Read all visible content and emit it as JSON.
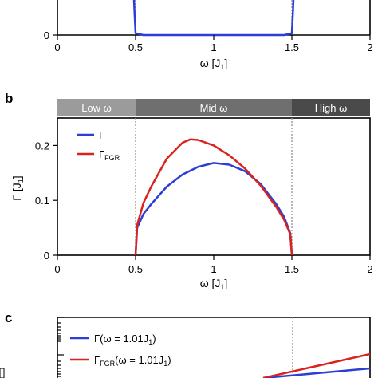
{
  "colors": {
    "blue": "#2b3fd6",
    "red": "#d8231f",
    "band_low": "#9b9b9b",
    "band_mid": "#6f6f6f",
    "band_high": "#4a4a4a"
  },
  "panel_a": {
    "xticks": [
      "0",
      "0.5",
      "1",
      "1.5",
      "2"
    ],
    "ytick_zero": "0",
    "xlabel_main": "ω [J",
    "xlabel_sub": "1",
    "xlabel_end": "]"
  },
  "panel_b": {
    "label": "b",
    "bands": {
      "low": "Low ω",
      "mid": "Mid ω",
      "high": "High ω"
    },
    "legend": {
      "g": "Γ",
      "gfgr_main": "Γ",
      "gfgr_sub": "FGR"
    },
    "ylabel_main": "Γ [J",
    "ylabel_sub": "1",
    "ylabel_end": "]",
    "xticks": [
      "0",
      "0.5",
      "1",
      "1.5",
      "2"
    ],
    "yticks": [
      "0",
      "0.1",
      "0.2"
    ],
    "xlabel_main": "ω [J",
    "xlabel_sub": "1",
    "xlabel_end": "]"
  },
  "panel_c": {
    "label": "c",
    "legend1_main": "Γ(ω = 1.01J",
    "legend1_sub": "1",
    "legend1_end": ")",
    "legend2_main": "Γ",
    "legend2_sub": "FGR",
    "legend2_rest": "(ω = 1.01J",
    "legend2_sub2": "1",
    "legend2_end": ")"
  },
  "chart_data": [
    {
      "type": "line",
      "panel": "a",
      "xlabel": "ω [J1]",
      "xlim": [
        0,
        2
      ],
      "series": [
        {
          "x": [
            0.49,
            0.495,
            0.5,
            0.55,
            1.0,
            1.45,
            1.5,
            1.505,
            1.51
          ],
          "y": [
            1.0,
            0.5,
            0.05,
            0.0,
            0.0,
            0.0,
            0.05,
            0.5,
            1.0
          ]
        }
      ]
    },
    {
      "type": "line",
      "panel": "b",
      "xlabel": "ω [J1]",
      "ylabel": "Γ [J1]",
      "xlim": [
        0,
        2
      ],
      "ylim": [
        0,
        0.25
      ],
      "series": [
        {
          "name": "Γ",
          "x": [
            0.5,
            0.51,
            0.55,
            0.6,
            0.7,
            0.8,
            0.9,
            1.0,
            1.1,
            1.2,
            1.3,
            1.4,
            1.45,
            1.49,
            1.5
          ],
          "y": [
            0.0,
            0.05,
            0.075,
            0.093,
            0.125,
            0.147,
            0.161,
            0.168,
            0.165,
            0.153,
            0.13,
            0.093,
            0.07,
            0.04,
            0.0
          ]
        },
        {
          "name": "ΓFGR",
          "x": [
            0.5,
            0.51,
            0.55,
            0.6,
            0.7,
            0.8,
            0.85,
            0.9,
            1.0,
            1.1,
            1.2,
            1.3,
            1.4,
            1.45,
            1.49,
            1.5
          ],
          "y": [
            0.0,
            0.055,
            0.095,
            0.125,
            0.176,
            0.205,
            0.211,
            0.21,
            0.2,
            0.182,
            0.158,
            0.127,
            0.088,
            0.065,
            0.038,
            0.0
          ]
        }
      ]
    },
    {
      "type": "line",
      "panel": "c",
      "series": [
        {
          "name": "Γ(ω = 1.01J1)",
          "x": [
            0.0,
            0.5,
            1.0
          ],
          "y": [
            0.0,
            0.5,
            1.0
          ]
        },
        {
          "name": "ΓFGR(ω = 1.01J1)",
          "x": [
            0.0,
            0.5,
            1.0
          ],
          "y": [
            0.0,
            0.5,
            1.0
          ]
        }
      ]
    }
  ]
}
